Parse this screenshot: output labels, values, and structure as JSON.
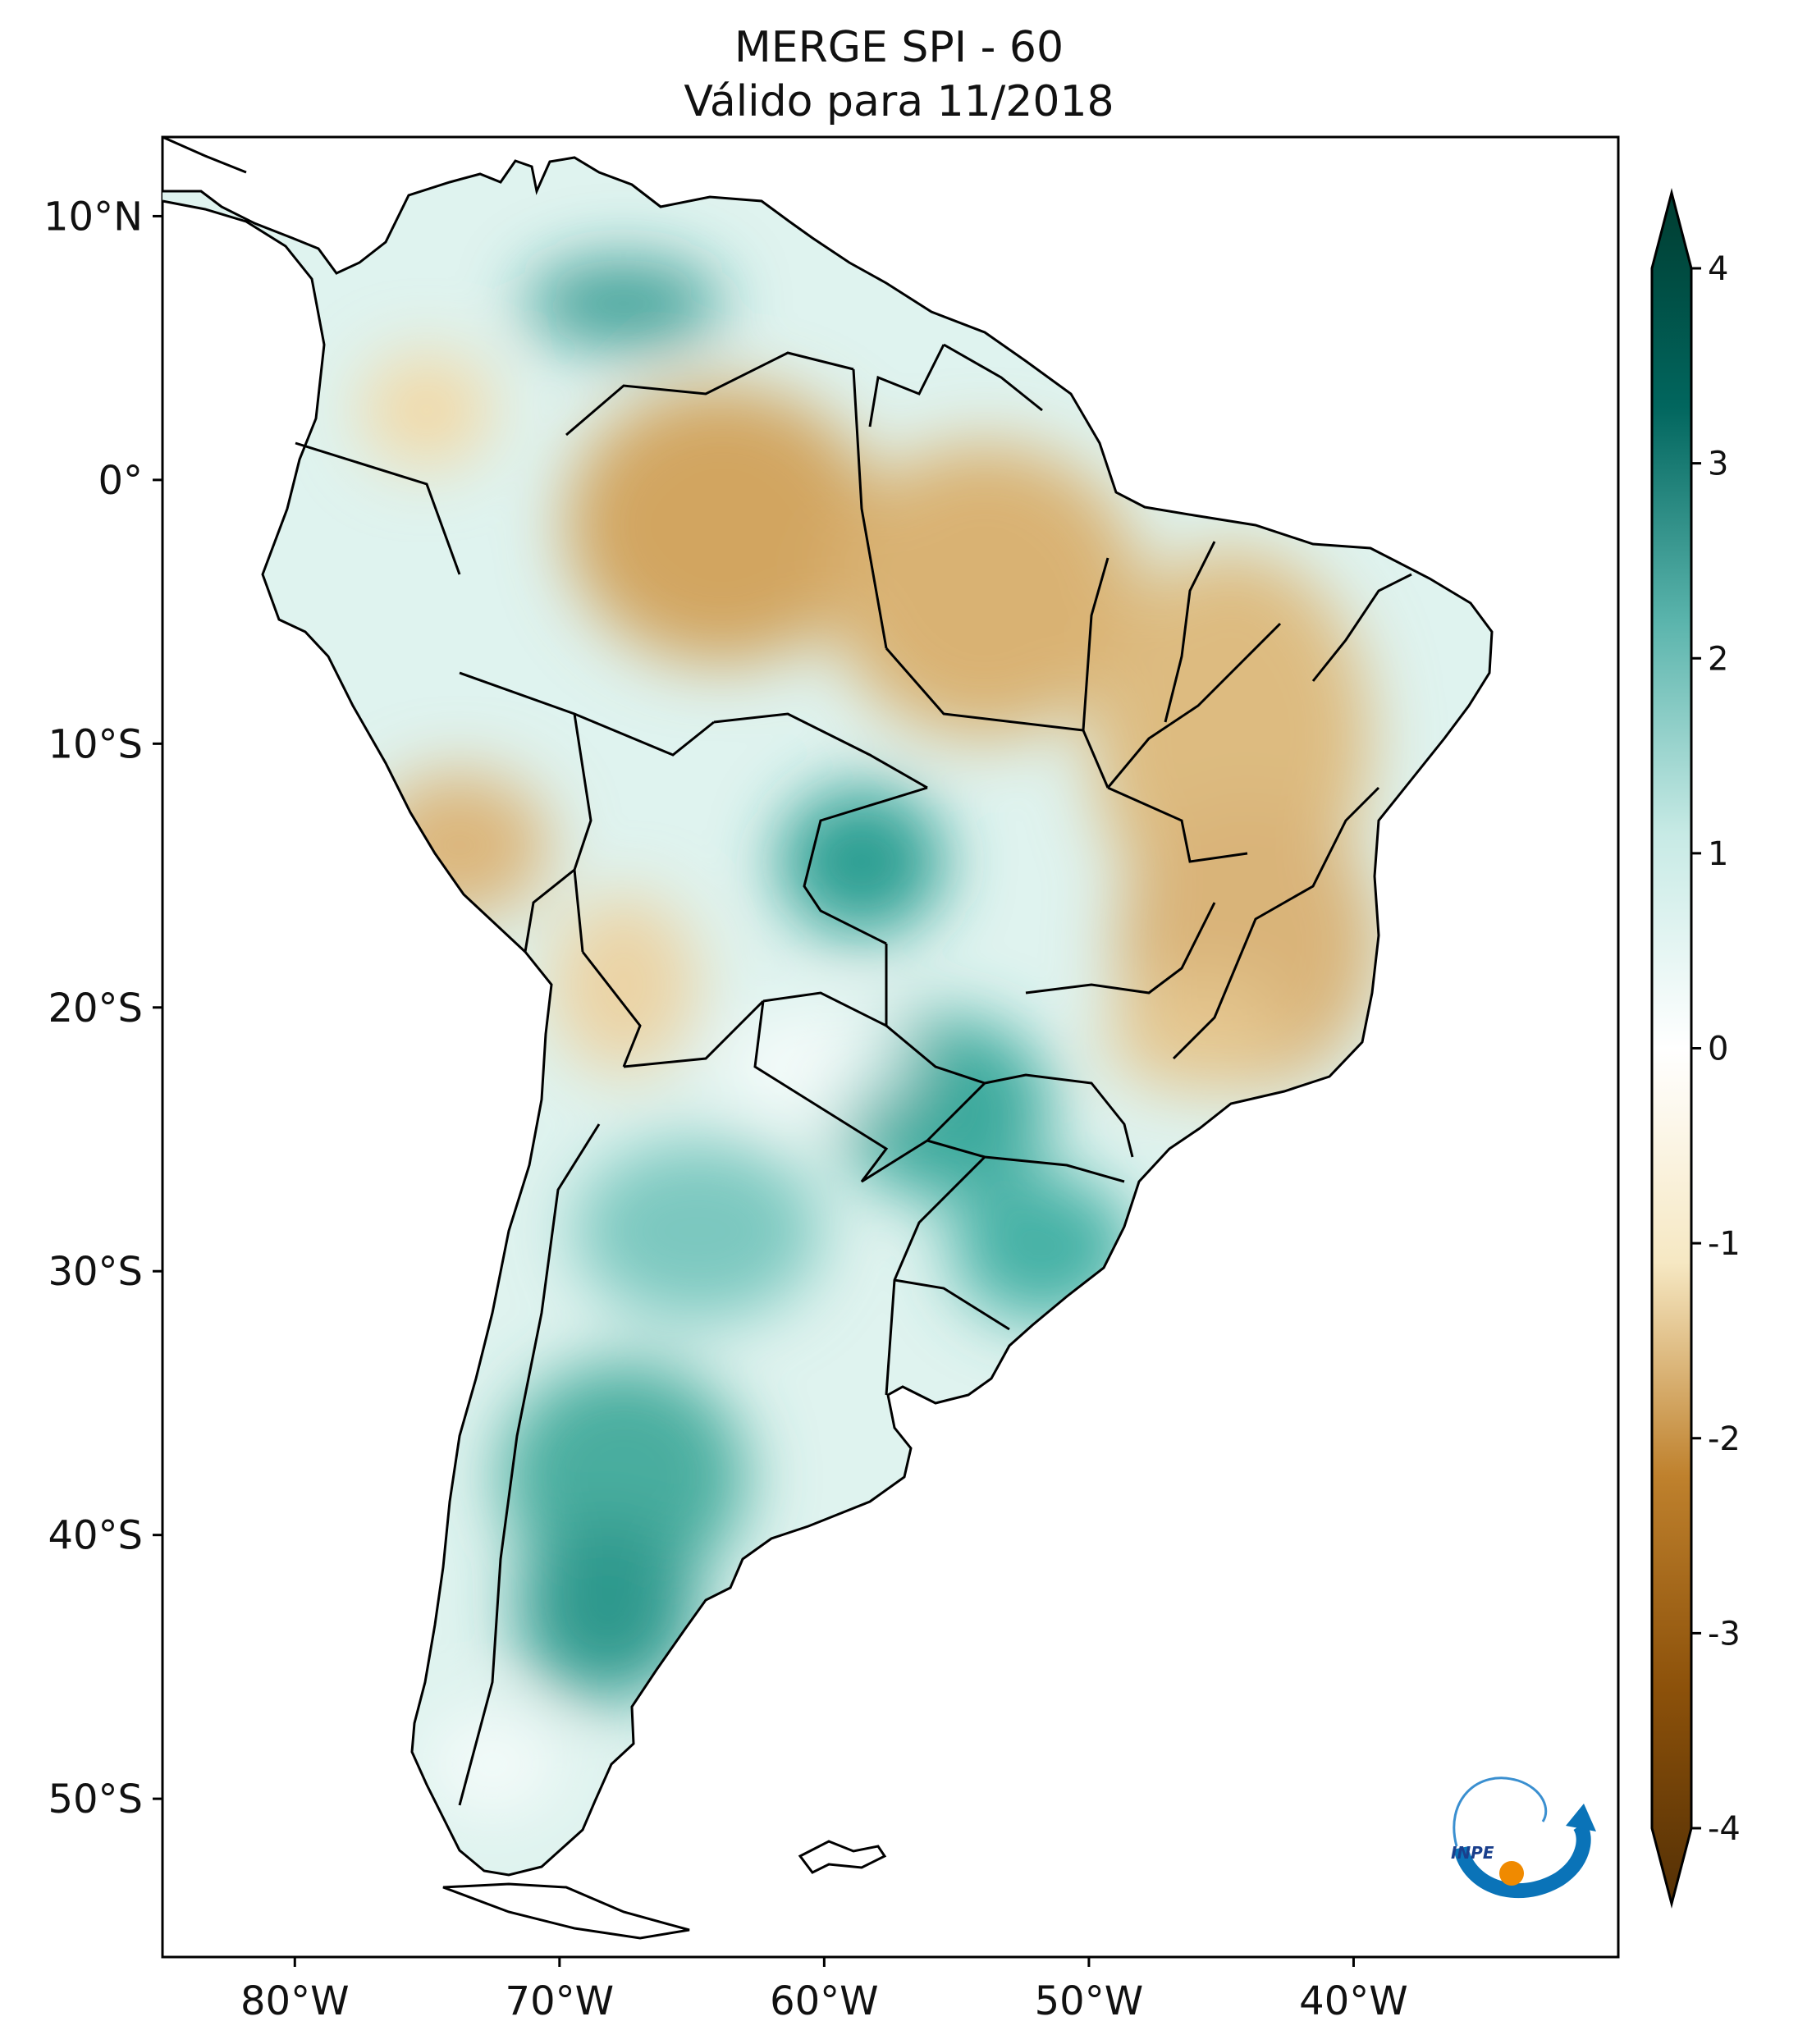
{
  "title": {
    "line1": "MERGE   SPI - 60",
    "line2": "Válido para 11/2018"
  },
  "map": {
    "lon_range": [
      -85,
      -30
    ],
    "lat_range": [
      -56,
      13
    ],
    "lon_ticks": [
      {
        "value": -80,
        "label": "80°W"
      },
      {
        "value": -70,
        "label": "70°W"
      },
      {
        "value": -60,
        "label": "60°W"
      },
      {
        "value": -50,
        "label": "50°W"
      },
      {
        "value": -40,
        "label": "40°W"
      }
    ],
    "lat_ticks": [
      {
        "value": 10,
        "label": "10°N"
      },
      {
        "value": 0,
        "label": "0°"
      },
      {
        "value": -10,
        "label": "10°S"
      },
      {
        "value": -20,
        "label": "20°S"
      },
      {
        "value": -30,
        "label": "30°S"
      },
      {
        "value": -40,
        "label": "40°S"
      },
      {
        "value": -50,
        "label": "50°S"
      }
    ]
  },
  "colorbar": {
    "range": [
      -4,
      4
    ],
    "extend": "both",
    "ticks": [
      {
        "value": 4,
        "label": "4"
      },
      {
        "value": 3,
        "label": "3"
      },
      {
        "value": 2,
        "label": "2"
      },
      {
        "value": 1,
        "label": "1"
      },
      {
        "value": 0,
        "label": "0"
      },
      {
        "value": -1,
        "label": "-1"
      },
      {
        "value": -2,
        "label": "-2"
      },
      {
        "value": -3,
        "label": "-3"
      },
      {
        "value": -4,
        "label": "-4"
      }
    ],
    "colors": {
      "-4": "#543005",
      "-3": "#8c510a",
      "-2": "#bf812d",
      "-1": "#f6e8c3",
      "0": "#ffffff",
      "1": "#c7eae5",
      "2": "#5ab4ac",
      "3": "#01665e",
      "4": "#003c30"
    }
  },
  "logo": {
    "text": "INPE"
  }
}
